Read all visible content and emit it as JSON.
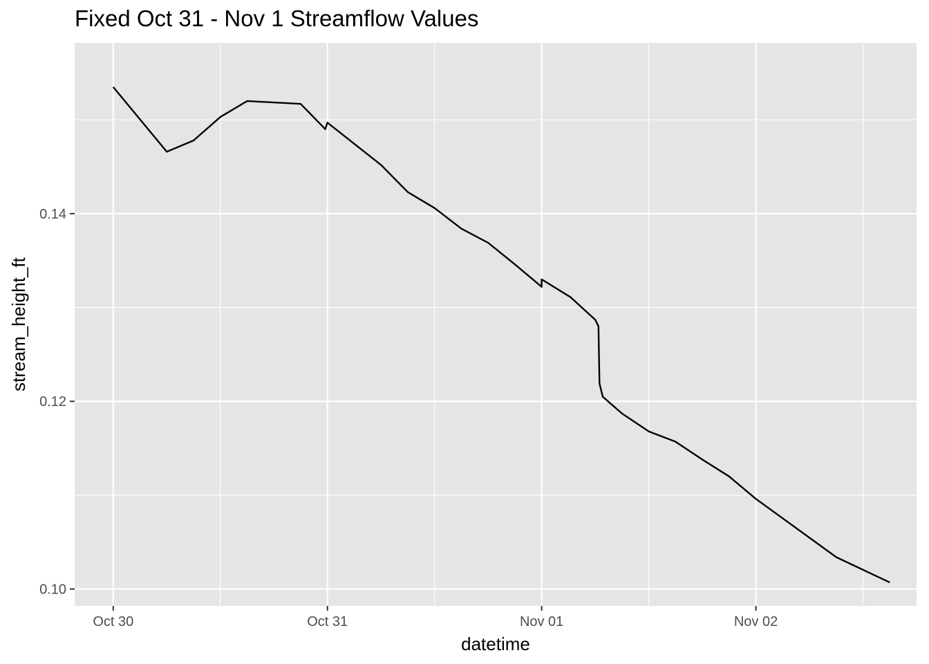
{
  "chart_data": {
    "type": "line",
    "title": "Fixed Oct 31 - Nov 1 Streamflow Values",
    "xlabel": "datetime",
    "ylabel": "stream_height_ft",
    "x_ticks": [
      {
        "value": 0,
        "label": "Oct 30"
      },
      {
        "value": 1,
        "label": "Oct 31"
      },
      {
        "value": 2,
        "label": "Nov 01"
      },
      {
        "value": 3,
        "label": "Nov 02"
      }
    ],
    "y_ticks": [
      {
        "value": 0.1,
        "label": "0.10"
      },
      {
        "value": 0.12,
        "label": "0.12"
      },
      {
        "value": 0.14,
        "label": "0.14"
      }
    ],
    "xlim": [
      -0.18,
      3.75
    ],
    "ylim": [
      0.0982,
      0.1582
    ],
    "grid": true,
    "colors": {
      "panel": "#e5e5e5",
      "grid": "#ffffff",
      "line": "#000000"
    },
    "series": [
      {
        "x": [
          0.0,
          0.25,
          0.375,
          0.5,
          0.625,
          0.875,
          0.99,
          1.0,
          1.25,
          1.375,
          1.5,
          1.625,
          1.75,
          1.875,
          2.0,
          2.0,
          2.135,
          2.25,
          2.265,
          2.27,
          2.285,
          2.375,
          2.5,
          2.625,
          2.75,
          2.875,
          3.0,
          3.375,
          3.625
        ],
        "y": [
          0.1535,
          0.1466,
          0.1478,
          0.1503,
          0.152,
          0.1517,
          0.149,
          0.1497,
          0.1452,
          0.1423,
          0.1406,
          0.1384,
          0.1369,
          0.1346,
          0.1322,
          0.133,
          0.1311,
          0.1287,
          0.128,
          0.1219,
          0.1205,
          0.1187,
          0.1168,
          0.1157,
          0.1138,
          0.112,
          0.1096,
          0.1034,
          0.1007
        ]
      }
    ]
  }
}
